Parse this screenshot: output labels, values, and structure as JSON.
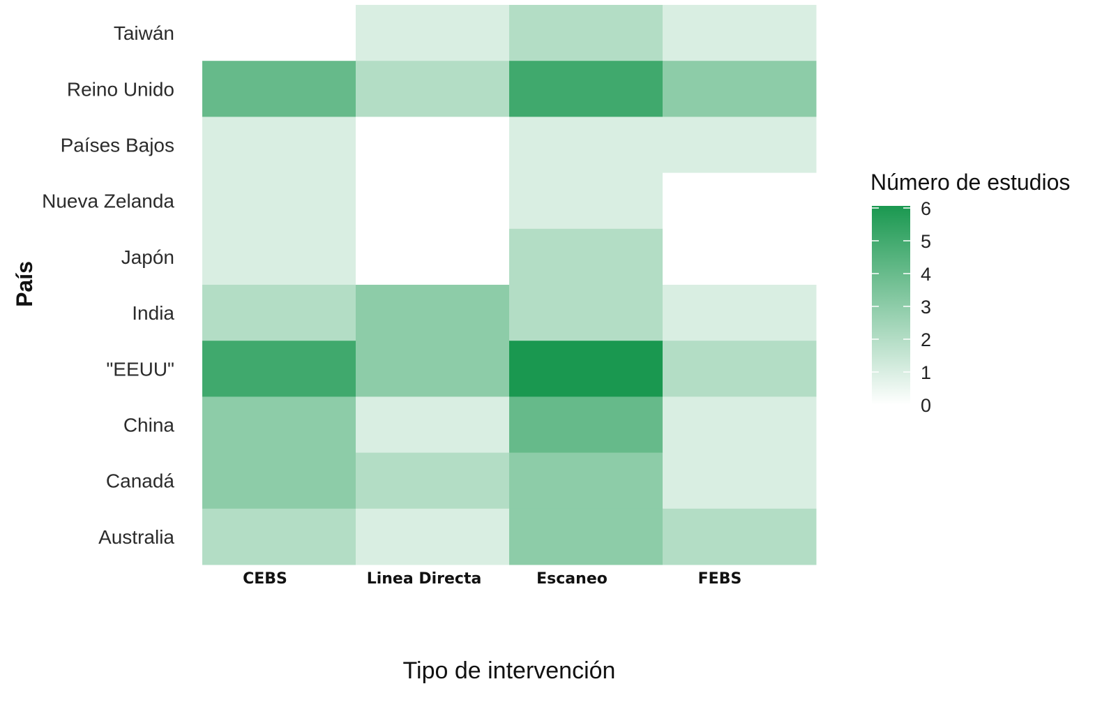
{
  "chart_data": {
    "type": "heatmap",
    "xlabel": "Tipo de intervención",
    "ylabel": "País",
    "x_categories": [
      "CEBS",
      "Linea Directa",
      "Escaneo",
      "FEBS"
    ],
    "y_categories": [
      "Taiwán",
      "Reino Unido",
      "Países Bajos",
      "Nueva Zelanda",
      "Japón",
      "India",
      "\"EEUU\"",
      "China",
      "Canadá",
      "Australia"
    ],
    "values": [
      [
        0,
        1,
        2,
        1
      ],
      [
        4,
        2,
        5,
        3
      ],
      [
        1,
        0,
        1,
        1
      ],
      [
        1,
        0,
        1,
        0
      ],
      [
        1,
        0,
        2,
        0
      ],
      [
        2,
        3,
        2,
        1
      ],
      [
        5,
        3,
        6,
        2
      ],
      [
        3,
        1,
        4,
        1
      ],
      [
        3,
        2,
        3,
        1
      ],
      [
        2,
        1,
        3,
        2
      ]
    ],
    "legend": {
      "title": "Número de estudios",
      "ticks": [
        "0",
        "1",
        "2",
        "3",
        "4",
        "5",
        "6"
      ],
      "min": 0,
      "max": 6,
      "position": "right"
    },
    "colors": {
      "low": "#ffffff",
      "high": "#1a9850"
    },
    "grid": false
  }
}
